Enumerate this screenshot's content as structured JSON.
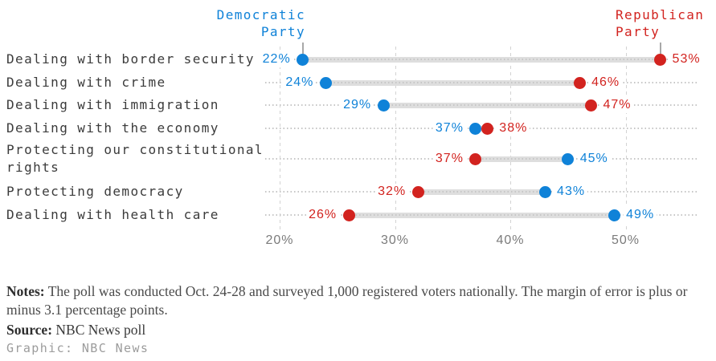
{
  "header": {
    "democratic_label": "Democratic\nParty",
    "republican_label": "Republican\nParty"
  },
  "colors": {
    "democratic": "#0f82d8",
    "republican": "#d2231f"
  },
  "chart_data": {
    "type": "scatter",
    "subtype": "dumbbell",
    "categories": [
      "Dealing with border security",
      "Dealing with crime",
      "Dealing with immigration",
      "Dealing with the economy",
      "Protecting our constitutional rights",
      "Protecting democracy",
      "Dealing with health care"
    ],
    "series": [
      {
        "name": "Democratic Party",
        "color": "#0f82d8",
        "values": [
          22,
          24,
          29,
          37,
          45,
          43,
          49
        ]
      },
      {
        "name": "Republican Party",
        "color": "#d2231f",
        "values": [
          53,
          46,
          47,
          38,
          37,
          32,
          26
        ]
      }
    ],
    "value_suffix": "%",
    "x_axis": {
      "ticks": [
        20,
        30,
        40,
        50
      ],
      "tick_labels": [
        "20%",
        "30%",
        "40%",
        "50%"
      ],
      "gridlines": true
    },
    "legend_position": "top-annotations",
    "title": ""
  },
  "footer": {
    "notes_label": "Notes:",
    "notes_text": "The poll was conducted Oct. 24-28 and surveyed 1,000 registered voters nationally. The margin of error is plus or minus 3.1 percentage points.",
    "source_label": "Source:",
    "source_text": "NBC News poll",
    "credit_text": "Graphic: NBC News"
  }
}
